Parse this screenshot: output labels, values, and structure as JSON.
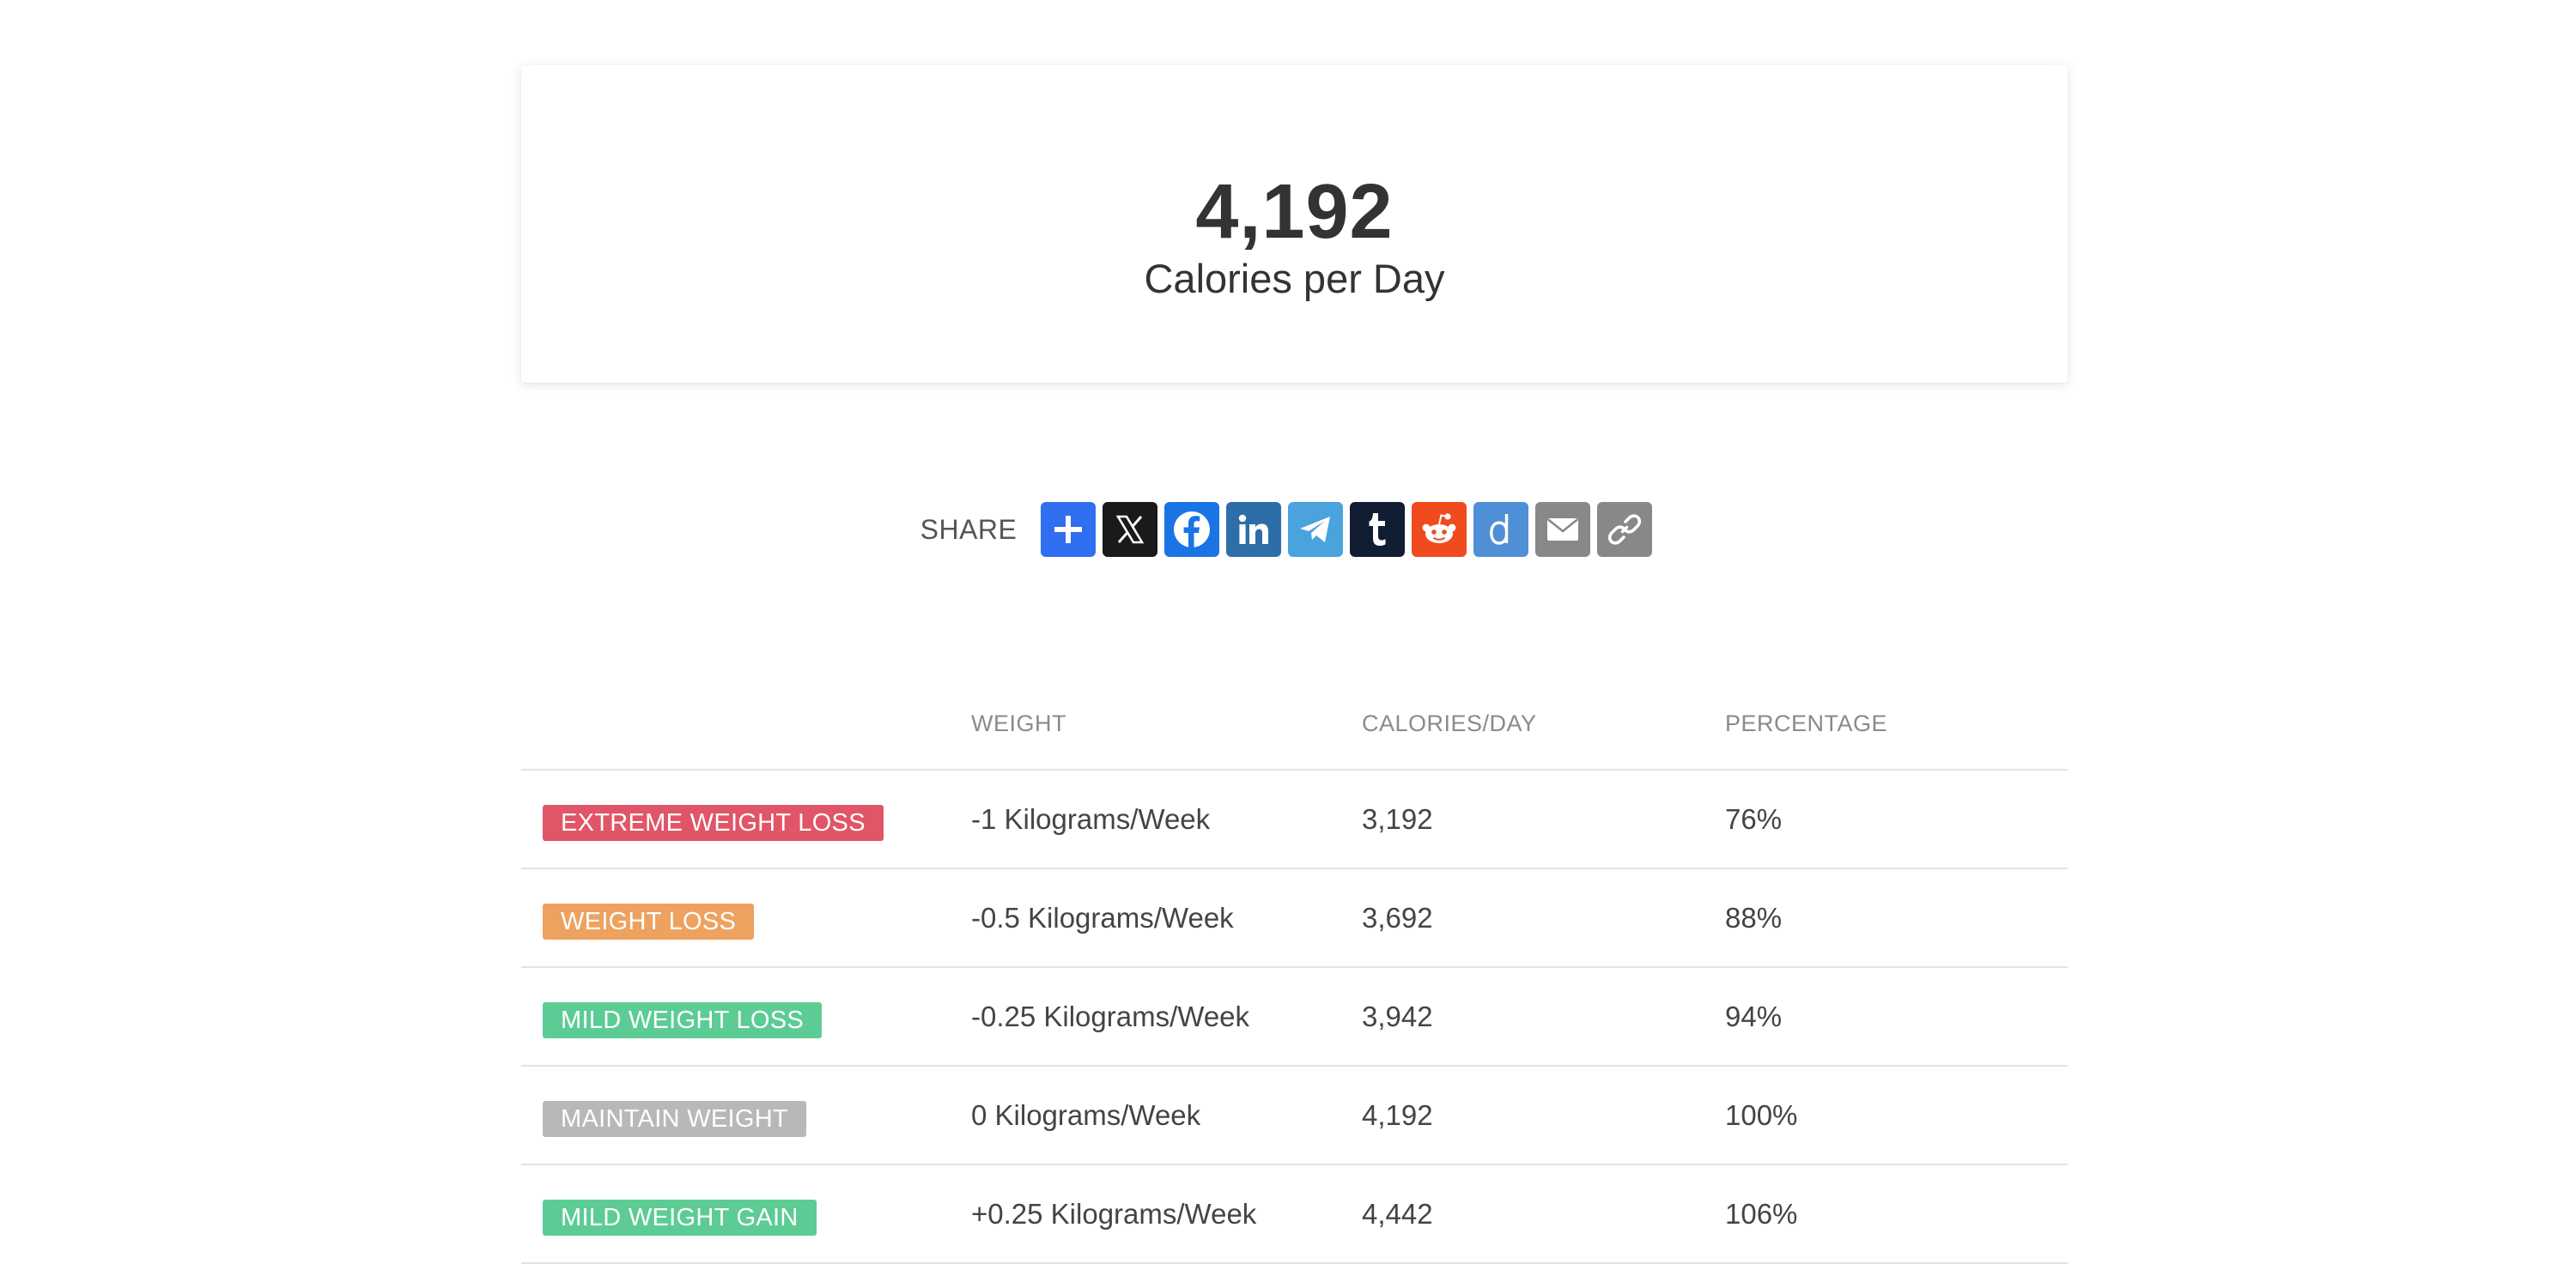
{
  "result": {
    "value": "4,192",
    "label": "Calories per Day"
  },
  "share": {
    "label": "SHARE",
    "buttons": [
      {
        "name": "share-add-icon",
        "color": "#2f6ff0"
      },
      {
        "name": "x-icon",
        "color": "#1a1a1a"
      },
      {
        "name": "facebook-icon",
        "color": "#1b74e4"
      },
      {
        "name": "linkedin-icon",
        "color": "#2d6da8"
      },
      {
        "name": "telegram-icon",
        "color": "#4aa3dc"
      },
      {
        "name": "tumblr-icon",
        "color": "#111d33"
      },
      {
        "name": "reddit-icon",
        "color": "#f04b1d"
      },
      {
        "name": "diigo-icon",
        "color": "#4f8fd6"
      },
      {
        "name": "email-icon",
        "color": "#888888"
      },
      {
        "name": "copy-link-icon",
        "color": "#888888"
      }
    ]
  },
  "table": {
    "headers": [
      "",
      "WEIGHT",
      "CALORIES/DAY",
      "PERCENTAGE"
    ],
    "rows": [
      {
        "badge": "EXTREME WEIGHT LOSS",
        "badge_color": "#e05567",
        "weight": "-1 Kilograms/Week",
        "calories": "3,192",
        "percentage": "76%"
      },
      {
        "badge": "WEIGHT LOSS",
        "badge_color": "#eda260",
        "weight": "-0.5 Kilograms/Week",
        "calories": "3,692",
        "percentage": "88%"
      },
      {
        "badge": "MILD WEIGHT LOSS",
        "badge_color": "#5ccc94",
        "weight": "-0.25 Kilograms/Week",
        "calories": "3,942",
        "percentage": "94%"
      },
      {
        "badge": "MAINTAIN WEIGHT",
        "badge_color": "#b8b8b8",
        "weight": "0 Kilograms/Week",
        "calories": "4,192",
        "percentage": "100%"
      },
      {
        "badge": "MILD WEIGHT GAIN",
        "badge_color": "#5ccc94",
        "weight": "+0.25 Kilograms/Week",
        "calories": "4,442",
        "percentage": "106%"
      }
    ]
  }
}
